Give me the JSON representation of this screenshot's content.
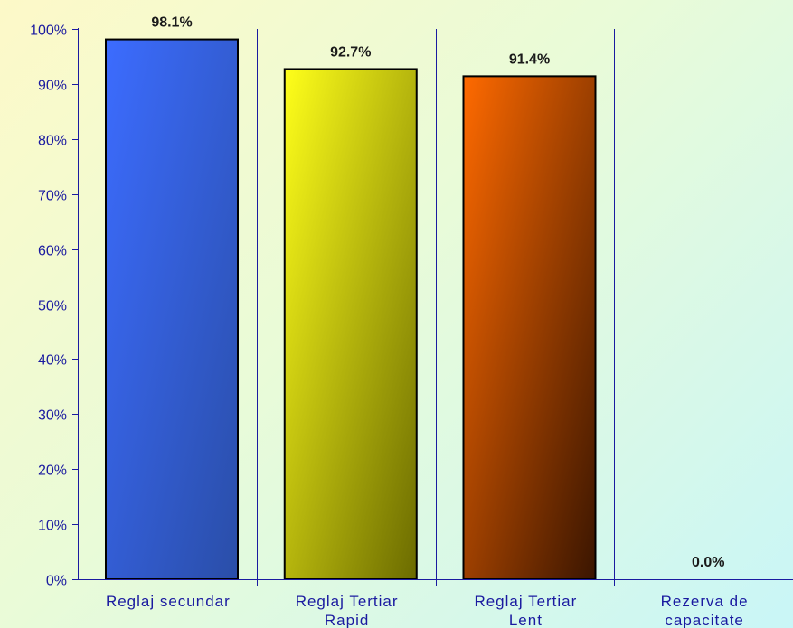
{
  "chart_data": {
    "type": "bar",
    "categories": [
      [
        "Reglaj secundar"
      ],
      [
        "Reglaj Tertiar",
        "Rapid"
      ],
      [
        "Reglaj Tertiar",
        "Lent"
      ],
      [
        "Rezerva de",
        "capacitate"
      ]
    ],
    "values": [
      98.1,
      92.7,
      91.4,
      0.0
    ],
    "data_labels": [
      "98.1%",
      "92.7%",
      "91.4%",
      "0.0%"
    ],
    "ylim": [
      0,
      100
    ],
    "yticks": [
      0,
      10,
      20,
      30,
      40,
      50,
      60,
      70,
      80,
      90,
      100
    ],
    "ytick_labels": [
      "0%",
      "10%",
      "20%",
      "30%",
      "40%",
      "50%",
      "60%",
      "70%",
      "80%",
      "90%",
      "100%"
    ],
    "bar_colors": [
      [
        "#3c6cff",
        "#2a4ea8"
      ],
      [
        "#ffff1a",
        "#6b6b00"
      ],
      [
        "#ff6a00",
        "#3a1500"
      ],
      [
        "#808080",
        "#404040"
      ]
    ],
    "title": "",
    "xlabel": "",
    "ylabel": "",
    "grid": false,
    "axis_color": "#1a1aa0"
  }
}
